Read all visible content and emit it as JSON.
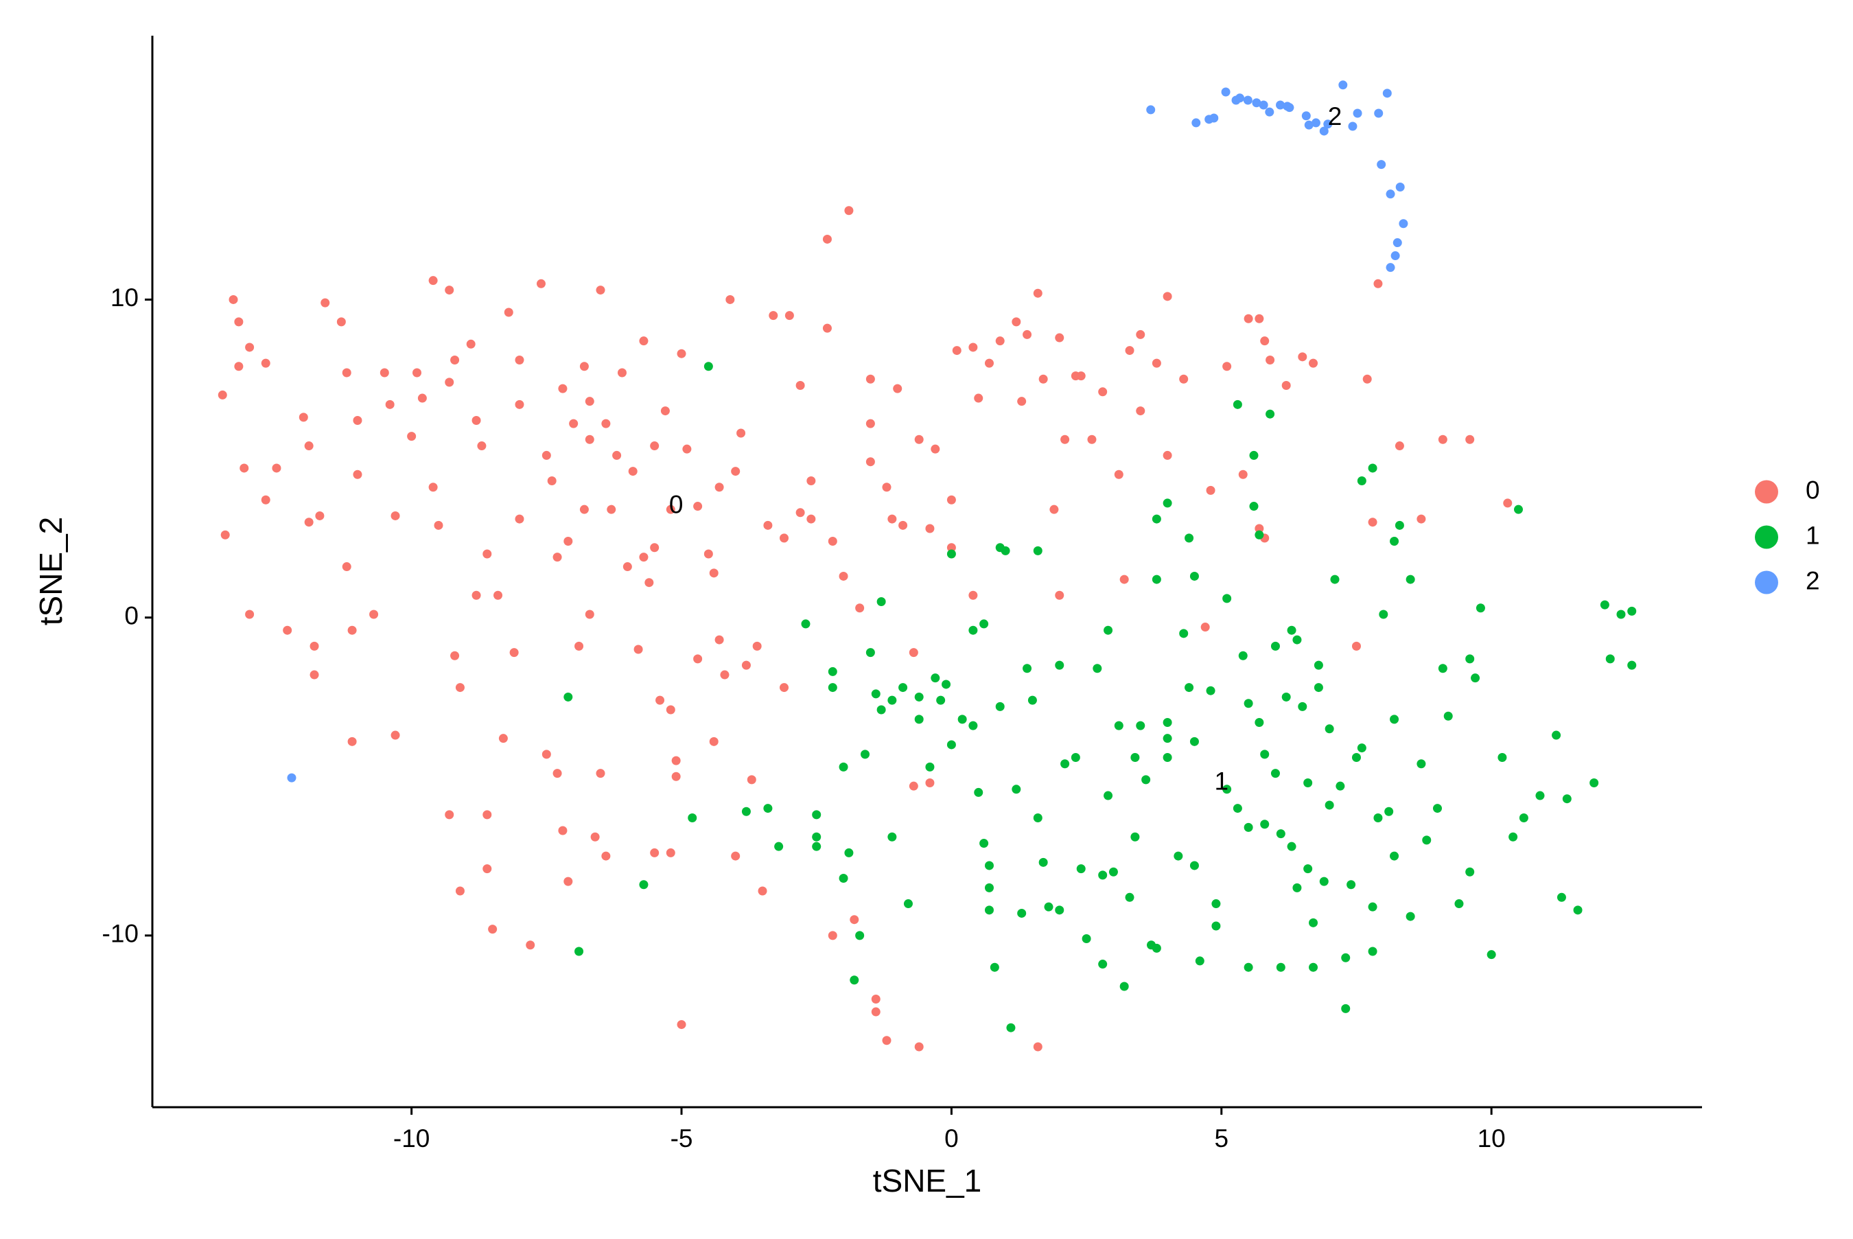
{
  "chart_data": {
    "type": "scatter",
    "xlabel": "tSNE_1",
    "ylabel": "tSNE_2",
    "xlim": [
      -14.8,
      13.9
    ],
    "ylim": [
      -15.4,
      18.3
    ],
    "xticks": [
      -10,
      -5,
      0,
      5,
      10
    ],
    "yticks": [
      -10,
      0,
      10
    ],
    "grid": false,
    "legend": "right",
    "series": [
      {
        "name": "0",
        "color": "#F8766D",
        "x": [
          -13.5,
          -13.45,
          -13.3,
          -13.2,
          -13.2,
          -13.1,
          -13.0,
          -13.0,
          -12.7,
          -12.7,
          -12.5,
          -12.3,
          -12.0,
          -11.9,
          -11.9,
          -11.8,
          -11.8,
          -11.7,
          -11.6,
          -11.3,
          -11.2,
          -11.2,
          -11.1,
          -11.1,
          -11.0,
          -11.0,
          -10.7,
          -10.5,
          -10.4,
          -10.3,
          -10.3,
          -10.0,
          -9.9,
          -9.8,
          -9.6,
          -9.5,
          -9.6,
          -9.3,
          -9.3,
          -9.3,
          -9.2,
          -9.2,
          -9.1,
          -9.1,
          -8.9,
          -8.8,
          -8.8,
          -8.7,
          -8.6,
          -8.6,
          -8.6,
          -8.5,
          -8.4,
          -8.3,
          -8.2,
          -8.1,
          -8.0,
          -8.0,
          -8.0,
          -7.8,
          -7.6,
          -7.5,
          -7.5,
          -7.4,
          -7.3,
          -7.3,
          -7.2,
          -7.2,
          -7.1,
          -7.1,
          -7.0,
          -6.9,
          -6.8,
          -6.8,
          -6.7,
          -6.7,
          -6.7,
          -6.6,
          -6.5,
          -6.5,
          -6.4,
          -6.4,
          -6.3,
          -6.2,
          -6.1,
          -6.0,
          -5.9,
          -5.8,
          -5.7,
          -5.7,
          -5.6,
          -5.5,
          -5.5,
          -5.5,
          -5.4,
          -5.3,
          -5.2,
          -5.2,
          -5.2,
          -5.1,
          -5.1,
          -5.0,
          -5.0,
          -4.9,
          -4.7,
          -4.7,
          -4.5,
          -4.4,
          -4.4,
          -4.3,
          -4.3,
          -4.2,
          -4.1,
          -4.0,
          -4.0,
          -3.9,
          -3.8,
          -3.7,
          -3.6,
          -3.5,
          -3.4,
          -3.3,
          -3.1,
          -3.1,
          -3.0,
          -2.8,
          -2.8,
          -2.6,
          -2.6,
          -2.3,
          -2.3,
          -2.2,
          -2.2,
          -2.0,
          -1.9,
          -1.8,
          -1.7,
          -1.5,
          -1.5,
          -1.5,
          -1.4,
          -1.4,
          -1.2,
          -1.2,
          -1.1,
          -1.0,
          -0.9,
          -0.7,
          -0.7,
          -0.6,
          -0.6,
          -0.4,
          -0.4,
          -0.3,
          0.0,
          0.0,
          0.1,
          0.4,
          0.4,
          0.5,
          0.7,
          0.9,
          1.2,
          1.3,
          1.4,
          1.6,
          1.6,
          1.7,
          1.9,
          2.0,
          2.0,
          2.1,
          2.3,
          2.4,
          2.6,
          2.8,
          3.1,
          3.2,
          3.3,
          3.5,
          3.5,
          3.8,
          4.0,
          4.0,
          4.3,
          4.7,
          4.8,
          5.1,
          5.4,
          5.5,
          5.7,
          5.7,
          5.8,
          5.8,
          5.9,
          6.2,
          6.5,
          6.7,
          7.5,
          7.7,
          7.8,
          7.9,
          8.3,
          8.7,
          9.1,
          9.6,
          10.3
        ],
        "y": [
          7.0,
          2.6,
          10.0,
          9.3,
          7.9,
          4.7,
          8.5,
          0.1,
          8.0,
          3.7,
          4.7,
          -0.4,
          6.3,
          5.4,
          3.0,
          -0.9,
          -1.8,
          3.2,
          9.9,
          9.3,
          7.7,
          1.6,
          -3.9,
          -0.4,
          4.5,
          6.2,
          0.1,
          7.7,
          6.7,
          -3.7,
          3.2,
          5.7,
          7.7,
          6.9,
          4.1,
          2.9,
          10.6,
          -6.2,
          7.4,
          10.3,
          -1.2,
          8.1,
          -2.2,
          -8.6,
          8.6,
          6.2,
          0.7,
          5.4,
          2.0,
          -6.2,
          -7.9,
          -9.8,
          0.7,
          -3.8,
          9.6,
          -1.1,
          6.7,
          8.1,
          3.1,
          -10.3,
          10.5,
          -4.3,
          5.1,
          4.3,
          1.9,
          -4.9,
          7.2,
          -6.7,
          -8.3,
          2.4,
          6.1,
          -0.9,
          3.4,
          7.9,
          5.6,
          0.1,
          6.8,
          -6.9,
          -4.9,
          10.3,
          -7.5,
          6.1,
          3.4,
          5.1,
          7.7,
          1.6,
          4.6,
          -1.0,
          1.9,
          8.7,
          1.1,
          5.4,
          -7.4,
          2.2,
          -2.6,
          6.5,
          3.4,
          -2.9,
          -7.4,
          -5.0,
          -4.5,
          -12.8,
          8.3,
          5.3,
          3.5,
          -1.3,
          2.0,
          -3.9,
          1.4,
          -0.7,
          4.1,
          -1.8,
          10.0,
          4.6,
          -7.5,
          5.8,
          -1.5,
          -5.1,
          -0.9,
          -8.6,
          2.9,
          9.5,
          2.5,
          -2.2,
          9.5,
          3.3,
          7.3,
          4.3,
          3.1,
          11.9,
          9.1,
          -10.0,
          2.4,
          1.3,
          12.8,
          -9.5,
          0.3,
          6.1,
          4.9,
          7.5,
          -12.0,
          -12.4,
          4.1,
          -13.3,
          3.1,
          7.2,
          2.9,
          -5.3,
          -1.1,
          5.6,
          -13.5,
          2.8,
          -5.2,
          5.3,
          3.7,
          2.2,
          8.4,
          0.7,
          8.5,
          6.9,
          8.0,
          8.7,
          9.3,
          6.8,
          8.9,
          -13.5,
          10.2,
          7.5,
          3.4,
          0.7,
          8.8,
          5.6,
          7.6,
          7.6,
          5.6,
          7.1,
          4.5,
          1.2,
          8.4,
          6.5,
          8.9,
          8.0,
          10.1,
          5.1,
          7.5,
          -0.3,
          4.0,
          7.9,
          4.5,
          9.4,
          9.4,
          2.8,
          8.7,
          2.5,
          8.1,
          7.3,
          8.2,
          8.0,
          -0.9,
          7.5,
          3.0,
          10.5,
          5.4,
          3.1,
          5.6,
          5.6,
          3.6
        ]
      },
      {
        "name": "1",
        "color": "#00BA38",
        "x": [
          -4.5,
          -7.1,
          -6.9,
          -5.7,
          -4.8,
          -3.8,
          -3.4,
          -3.2,
          -2.7,
          -2.5,
          -2.5,
          -2.5,
          -2.2,
          -2.2,
          -2.0,
          -2.0,
          -1.9,
          -1.8,
          -1.7,
          -1.6,
          -1.5,
          -1.4,
          -1.3,
          -1.3,
          -1.1,
          -1.1,
          -0.9,
          -0.8,
          -0.6,
          -0.6,
          -0.4,
          -0.3,
          -0.2,
          -0.1,
          0.0,
          0.0,
          0.2,
          0.4,
          0.4,
          0.5,
          0.6,
          0.6,
          0.7,
          0.7,
          0.7,
          0.8,
          0.9,
          0.9,
          1.0,
          1.1,
          1.2,
          1.3,
          1.4,
          1.5,
          1.6,
          1.6,
          1.7,
          1.8,
          2.0,
          2.0,
          2.1,
          2.3,
          2.4,
          2.5,
          2.7,
          2.8,
          2.8,
          2.9,
          2.9,
          3.0,
          3.1,
          3.2,
          3.3,
          3.4,
          3.4,
          3.5,
          3.6,
          3.7,
          3.8,
          3.8,
          3.8,
          4.0,
          4.0,
          4.0,
          4.0,
          4.2,
          4.3,
          4.4,
          4.4,
          4.5,
          4.5,
          4.5,
          4.6,
          4.8,
          4.9,
          4.9,
          5.1,
          5.1,
          5.3,
          5.3,
          5.4,
          5.5,
          5.5,
          5.5,
          5.6,
          5.6,
          5.7,
          5.7,
          5.8,
          5.8,
          5.9,
          6.0,
          6.0,
          6.1,
          6.1,
          6.2,
          6.3,
          6.3,
          6.4,
          6.4,
          6.5,
          6.6,
          6.6,
          6.7,
          6.7,
          6.8,
          6.8,
          6.9,
          7.0,
          7.0,
          7.1,
          7.2,
          7.3,
          7.3,
          7.4,
          7.5,
          7.6,
          7.6,
          7.8,
          7.8,
          7.8,
          7.9,
          8.0,
          8.1,
          8.2,
          8.2,
          8.2,
          8.3,
          8.5,
          8.5,
          8.7,
          8.8,
          9.0,
          9.1,
          9.2,
          9.4,
          9.6,
          9.6,
          9.7,
          9.8,
          10.0,
          10.2,
          10.4,
          10.5,
          10.6,
          10.9,
          11.2,
          11.3,
          11.4,
          11.6,
          11.9,
          12.1,
          12.2,
          12.4,
          12.6,
          12.6
        ],
        "y": [
          7.9,
          -2.5,
          -10.5,
          -8.4,
          -6.3,
          -6.1,
          -6.0,
          -7.2,
          -0.2,
          -6.2,
          -6.9,
          -7.2,
          -1.7,
          -2.2,
          -4.7,
          -8.2,
          -7.4,
          -11.4,
          -10.0,
          -4.3,
          -1.1,
          -2.4,
          0.5,
          -2.9,
          -6.9,
          -2.6,
          -2.2,
          -9.0,
          -3.2,
          -2.5,
          -4.7,
          -1.9,
          -2.6,
          -2.1,
          2.0,
          -4.0,
          -3.2,
          -0.4,
          -3.4,
          -5.5,
          -7.1,
          -0.2,
          -8.5,
          -7.8,
          -9.2,
          -11.0,
          2.2,
          -2.8,
          2.1,
          -12.9,
          -5.4,
          -9.3,
          -1.6,
          -2.6,
          2.1,
          -6.3,
          -7.7,
          -9.1,
          -1.5,
          -9.2,
          -4.6,
          -4.4,
          -7.9,
          -10.1,
          -1.6,
          -8.1,
          -10.9,
          -5.6,
          -0.4,
          -8.0,
          -3.4,
          -11.6,
          -8.8,
          -4.4,
          -6.9,
          -3.4,
          -5.1,
          -10.3,
          3.1,
          1.2,
          -10.4,
          -3.3,
          3.6,
          -3.8,
          -4.4,
          -7.5,
          -0.5,
          2.5,
          -2.2,
          -7.8,
          1.3,
          -3.9,
          -10.8,
          -2.3,
          -9.0,
          -9.7,
          0.6,
          -5.4,
          6.7,
          -6.0,
          -1.2,
          -2.7,
          -11.0,
          -6.6,
          5.1,
          3.5,
          -3.3,
          2.6,
          -4.3,
          -6.5,
          6.4,
          -0.9,
          -4.9,
          -6.8,
          -11.0,
          -2.5,
          -0.4,
          -7.2,
          -0.7,
          -8.5,
          -2.8,
          -5.2,
          -7.9,
          -9.6,
          -11.0,
          -2.2,
          -1.5,
          -8.3,
          -5.9,
          -3.5,
          1.2,
          -5.3,
          -10.7,
          -12.3,
          -8.4,
          -4.4,
          4.3,
          -4.1,
          -9.1,
          -10.5,
          4.7,
          -6.3,
          0.1,
          -6.1,
          2.4,
          -7.5,
          -3.2,
          2.9,
          -9.4,
          1.2,
          -4.6,
          -7.0,
          -6.0,
          -1.6,
          -3.1,
          -9.0,
          -8.0,
          -1.3,
          -1.9,
          0.3,
          -10.6,
          -4.4,
          -6.9,
          3.4,
          -6.3,
          -5.6,
          -3.7,
          -8.8,
          -5.7,
          -9.2,
          -5.2,
          0.4,
          -1.3,
          0.1,
          -1.5,
          0.2
        ]
      },
      {
        "name": "2",
        "color": "#619CFF",
        "x": [
          3.69,
          4.53,
          4.77,
          4.86,
          5.08,
          5.27,
          5.34,
          5.49,
          5.65,
          5.78,
          5.89,
          6.09,
          6.22,
          6.26,
          6.57,
          6.62,
          6.75,
          6.9,
          6.97,
          7.25,
          7.43,
          7.52,
          7.91,
          8.07,
          7.96,
          8.13,
          8.31,
          8.37,
          8.26,
          8.22,
          8.13,
          -12.22
        ],
        "y": [
          15.97,
          15.56,
          15.67,
          15.71,
          16.53,
          16.27,
          16.34,
          16.27,
          16.19,
          16.12,
          15.9,
          16.12,
          16.08,
          16.04,
          15.78,
          15.49,
          15.56,
          15.3,
          15.52,
          16.75,
          15.45,
          15.86,
          15.86,
          16.49,
          14.25,
          13.32,
          13.54,
          12.39,
          11.79,
          11.38,
          11.01,
          -5.04
        ]
      }
    ],
    "annotations": [
      {
        "text": "0",
        "x": -5.1,
        "y": 3.5
      },
      {
        "text": "1",
        "x": 5.0,
        "y": -5.2
      },
      {
        "text": "2",
        "x": 7.1,
        "y": 15.7
      }
    ]
  }
}
